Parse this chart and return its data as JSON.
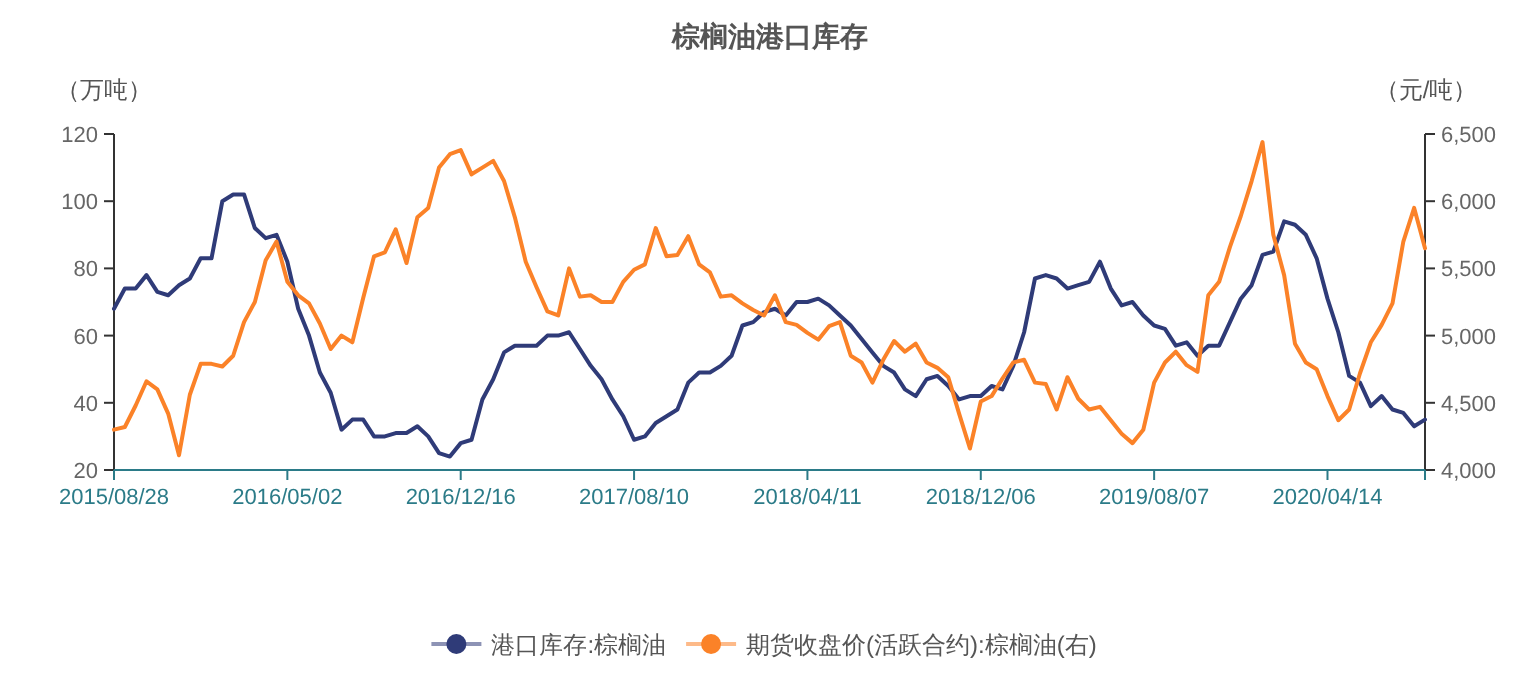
{
  "chart_data": {
    "type": "line",
    "title": "棕榈油港口库存",
    "ylabel": "（万吨）",
    "y2label": "（元/吨）",
    "categories": [
      "2015/08/28",
      null,
      null,
      null,
      null,
      null,
      null,
      null,
      null,
      null,
      null,
      null,
      null,
      null,
      null,
      null,
      "2016/05/02",
      null,
      null,
      null,
      null,
      null,
      null,
      null,
      null,
      null,
      null,
      null,
      null,
      null,
      null,
      null,
      "2016/12/16",
      null,
      null,
      null,
      null,
      null,
      null,
      null,
      null,
      null,
      null,
      null,
      null,
      null,
      null,
      null,
      "2017/08/10",
      null,
      null,
      null,
      null,
      null,
      null,
      null,
      null,
      null,
      null,
      null,
      null,
      null,
      null,
      null,
      "2018/04/11",
      null,
      null,
      null,
      null,
      null,
      null,
      null,
      null,
      null,
      null,
      null,
      null,
      null,
      null,
      null,
      "2018/12/06",
      null,
      null,
      null,
      null,
      null,
      null,
      null,
      null,
      null,
      null,
      null,
      null,
      null,
      null,
      null,
      "2019/08/07",
      null,
      null,
      null,
      null,
      null,
      null,
      null,
      null,
      null,
      null,
      null,
      null,
      null,
      null,
      null,
      "2020/04/14",
      null,
      null,
      null,
      null,
      null,
      null,
      null,
      null,
      null
    ],
    "series": [
      {
        "name": "港口库存:棕榈油",
        "color": "#2f3b78",
        "values": [
          68,
          74,
          74,
          78,
          73,
          72,
          75,
          77,
          83,
          83,
          100,
          102,
          102,
          92,
          89,
          90,
          82,
          68,
          60,
          49,
          43,
          32,
          35,
          35,
          30,
          30,
          31,
          31,
          33,
          30,
          25,
          24,
          28,
          29,
          41,
          47,
          55,
          57,
          57,
          57,
          60,
          60,
          61,
          56,
          51,
          47,
          41,
          36,
          29,
          30,
          34,
          36,
          38,
          46,
          49,
          49,
          51,
          54,
          63,
          64,
          67,
          68,
          66,
          70,
          70,
          71,
          69,
          66,
          63,
          59,
          55,
          51,
          49,
          44,
          42,
          47,
          48,
          45,
          41,
          42,
          42,
          45,
          44,
          51,
          61,
          77,
          78,
          77,
          74,
          75,
          76,
          82,
          74,
          69,
          70,
          66,
          63,
          62,
          57,
          58,
          54,
          57,
          57,
          64,
          71,
          75,
          84,
          85,
          94,
          93,
          90,
          83,
          71,
          61,
          48,
          46,
          39,
          42,
          38,
          37,
          33,
          35
        ]
      },
      {
        "name": "期货收盘价(活跃合约):棕榈油(右)",
        "color": "#fb8228",
        "axis": "y2",
        "values": [
          4300,
          4320,
          4480,
          4660,
          4600,
          4420,
          4110,
          4560,
          4790,
          4790,
          4770,
          4850,
          5100,
          5250,
          5560,
          5700,
          5400,
          5300,
          5240,
          5090,
          4900,
          5000,
          4950,
          5280,
          5590,
          5620,
          5790,
          5540,
          5880,
          5950,
          6250,
          6350,
          6380,
          6200,
          6250,
          6300,
          6150,
          5880,
          5550,
          5360,
          5180,
          5150,
          5500,
          5290,
          5300,
          5250,
          5250,
          5400,
          5490,
          5530,
          5800,
          5590,
          5600,
          5740,
          5530,
          5470,
          5290,
          5300,
          5240,
          5190,
          5150,
          5300,
          5100,
          5080,
          5020,
          4970,
          5070,
          5100,
          4850,
          4800,
          4650,
          4820,
          4960,
          4880,
          4940,
          4800,
          4760,
          4690,
          4420,
          4160,
          4510,
          4550,
          4680,
          4800,
          4820,
          4650,
          4640,
          4450,
          4690,
          4530,
          4450,
          4470,
          4370,
          4270,
          4200,
          4300,
          4650,
          4800,
          4880,
          4780,
          4730,
          5300,
          5400,
          5660,
          5890,
          6150,
          6440,
          5750,
          5450,
          4940,
          4800,
          4750,
          4550,
          4370,
          4450,
          4720,
          4950,
          5080,
          5240,
          5700,
          5950,
          5650
        ]
      }
    ],
    "ylim": [
      20,
      120
    ],
    "yticks": [
      20,
      40,
      60,
      80,
      100,
      120
    ],
    "y2lim": [
      4000,
      6500
    ],
    "y2ticks": [
      {
        "value": 4000,
        "label": "4,000"
      },
      {
        "value": 4500,
        "label": "4,500"
      },
      {
        "value": 5000,
        "label": "5,000"
      },
      {
        "value": 5500,
        "label": "5,500"
      },
      {
        "value": 6000,
        "label": "6,000"
      },
      {
        "value": 6500,
        "label": "6,500"
      }
    ],
    "legend": "bottom"
  }
}
